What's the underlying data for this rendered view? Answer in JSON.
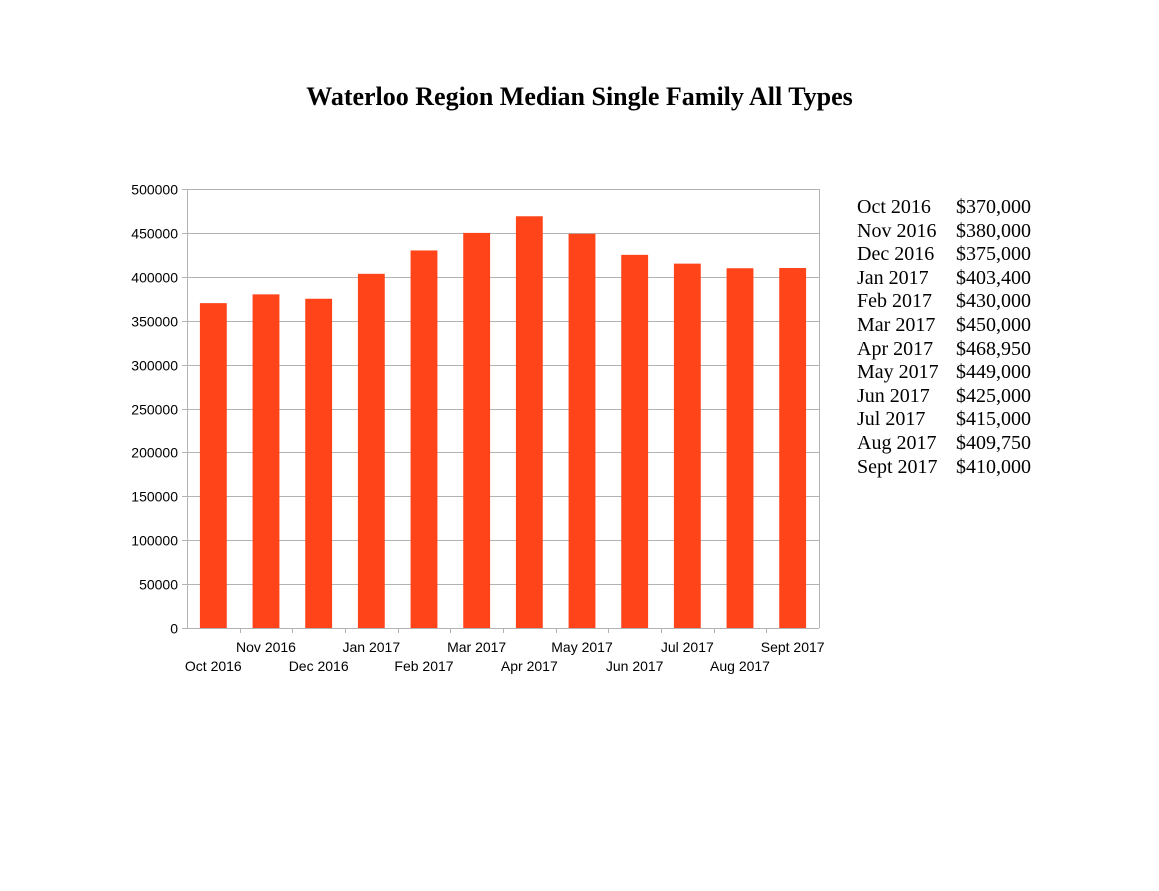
{
  "title": "Waterloo Region Median Single Family All Types",
  "colors": {
    "bar": "#ff4419",
    "grid": "#b3b3b3",
    "axis": "#b3b3b3"
  },
  "table": [
    {
      "month": "Oct 2016",
      "value": "$370,000"
    },
    {
      "month": "Nov 2016",
      "value": "$380,000"
    },
    {
      "month": "Dec 2016",
      "value": "$375,000"
    },
    {
      "month": "Jan 2017",
      "value": "$403,400"
    },
    {
      "month": "Feb 2017",
      "value": "$430,000"
    },
    {
      "month": "Mar 2017",
      "value": "$450,000"
    },
    {
      "month": "Apr 2017",
      "value": "$468,950"
    },
    {
      "month": "May 2017",
      "value": "$449,000"
    },
    {
      "month": "Jun 2017",
      "value": "$425,000"
    },
    {
      "month": "Jul 2017",
      "value": "$415,000"
    },
    {
      "month": "Aug 2017",
      "value": "$409,750"
    },
    {
      "month": "Sept 2017",
      "value": "$410,000"
    }
  ],
  "chart_data": {
    "type": "bar",
    "title": "Waterloo Region Median Single Family All Types",
    "xlabel": "",
    "ylabel": "",
    "categories": [
      "Oct 2016",
      "Nov 2016",
      "Dec 2016",
      "Jan 2017",
      "Feb 2017",
      "Mar 2017",
      "Apr 2017",
      "May 2017",
      "Jun 2017",
      "Jul 2017",
      "Aug 2017",
      "Sept 2017"
    ],
    "values": [
      370000,
      380000,
      375000,
      403400,
      430000,
      450000,
      468950,
      449000,
      425000,
      415000,
      409750,
      410000
    ],
    "ylim": [
      0,
      500000
    ],
    "yticks": [
      0,
      50000,
      100000,
      150000,
      200000,
      250000,
      300000,
      350000,
      400000,
      450000,
      500000
    ],
    "ytick_labels": [
      "0",
      "50000",
      "100000",
      "150000",
      "200000",
      "250000",
      "300000",
      "350000",
      "400000",
      "450000",
      "500000"
    ],
    "grid": "horizontal",
    "legend": "none",
    "xtick_layout": "staggered"
  }
}
